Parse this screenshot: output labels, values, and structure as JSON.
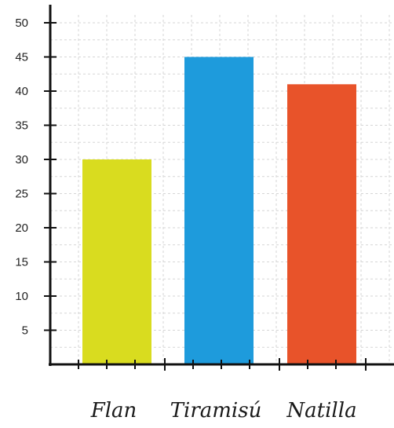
{
  "chart_data": {
    "type": "bar",
    "title": "",
    "xlabel": "",
    "ylabel": "",
    "categories": [
      "Flan",
      "Tiramisú",
      "Natilla"
    ],
    "values": [
      30,
      45,
      41
    ],
    "colors": [
      "#d9dc1f",
      "#1e9bdc",
      "#e8532a"
    ],
    "ylim": [
      0,
      50
    ],
    "yticks": [
      5,
      10,
      15,
      20,
      25,
      30,
      35,
      40,
      45,
      50
    ],
    "grid": true,
    "legend": "none"
  }
}
